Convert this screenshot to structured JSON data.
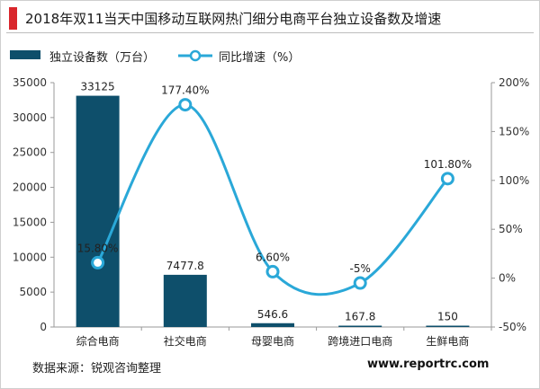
{
  "header": {
    "title": "2018年双11当天中国移动互联网热门细分电商平台独立设备数及增速"
  },
  "footer": {
    "source": "数据来源：锐观咨询整理",
    "site": "www.reportrc.com"
  },
  "colors": {
    "bar": "#0e4f6b",
    "line": "#2aa8d8",
    "accent": "#d9262c"
  },
  "chart_data": {
    "type": "bar",
    "categories": [
      "综合电商",
      "社交电商",
      "母婴电商",
      "跨境进口电商",
      "生鲜电商"
    ],
    "series": [
      {
        "name": "独立设备数（万台）",
        "type": "bar",
        "axis": "left",
        "values": [
          33125,
          7477.8,
          546.6,
          167.8,
          150
        ],
        "labels": [
          "33125",
          "7477.8",
          "546.6",
          "167.8",
          "150"
        ]
      },
      {
        "name": "同比增速（%）",
        "type": "line",
        "axis": "right",
        "smooth": true,
        "values": [
          15.8,
          177.4,
          6.6,
          -5,
          101.8
        ],
        "labels": [
          "15.80%",
          "177.40%",
          "6.60%",
          "-5%",
          "101.80%"
        ]
      }
    ],
    "left_axis": {
      "min": 0,
      "max": 35000,
      "ticks": [
        "0",
        "5000",
        "10000",
        "15000",
        "20000",
        "25000",
        "30000",
        "35000"
      ]
    },
    "right_axis": {
      "min": -50,
      "max": 200,
      "ticks": [
        "-50%",
        "0%",
        "50%",
        "100%",
        "150%",
        "200%"
      ]
    },
    "legend_position": "top-left",
    "grid": false
  }
}
